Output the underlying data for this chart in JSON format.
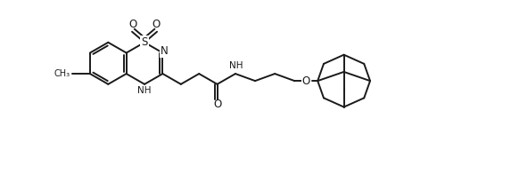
{
  "bg_color": "#ffffff",
  "line_color": "#1a1a1a",
  "line_width": 1.4,
  "font_size": 7.5,
  "figsize": [
    5.73,
    1.96
  ],
  "dpi": 100,
  "xlim": [
    0,
    11.0
  ],
  "ylim": [
    -0.3,
    4.0
  ]
}
